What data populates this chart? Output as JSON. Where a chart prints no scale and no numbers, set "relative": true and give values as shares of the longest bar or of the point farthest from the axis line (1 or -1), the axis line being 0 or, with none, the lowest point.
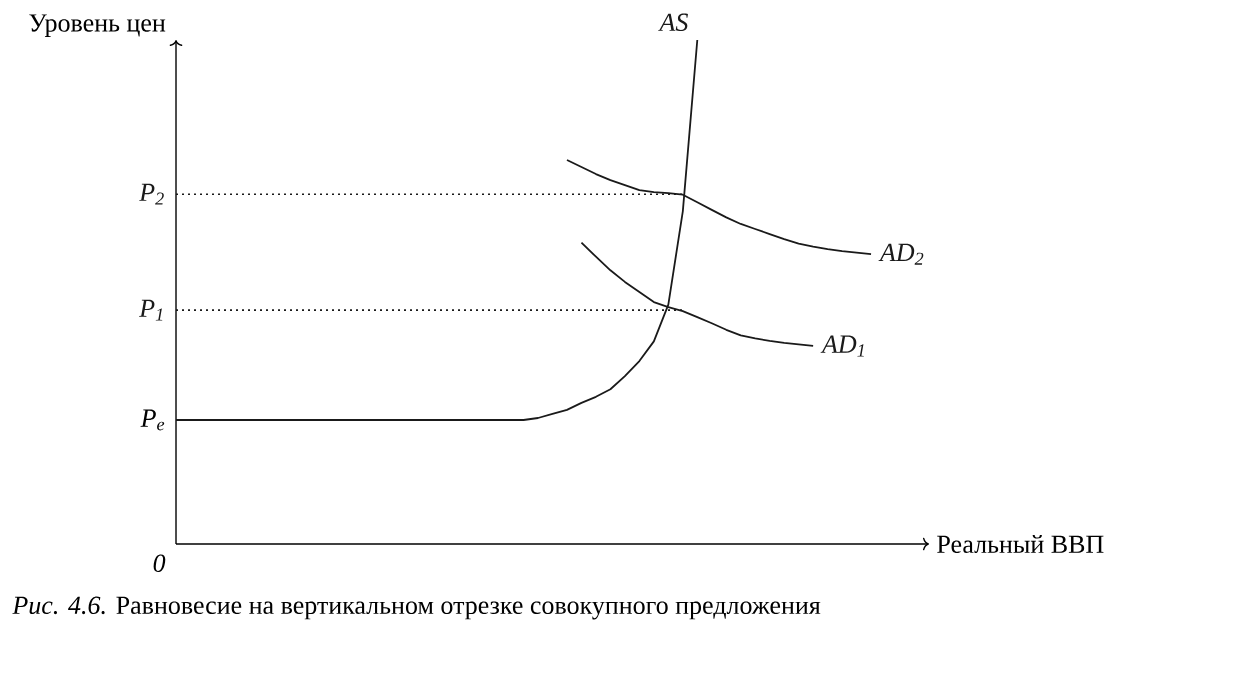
{
  "chart_data": {
    "type": "line",
    "relative": true,
    "marker": "none",
    "line_style": "solid",
    "color": "#1a1a1a",
    "xlabel": "Реальный ВВП",
    "ylabel": "Уровень цен",
    "categories": [
      null,
      null,
      null,
      null,
      null,
      null,
      null,
      null,
      null,
      null,
      null,
      null,
      null,
      null,
      null,
      null,
      null,
      null,
      null,
      null,
      null,
      null,
      null,
      null,
      null,
      null,
      null,
      null,
      null,
      null,
      null,
      null,
      null,
      null,
      null,
      null,
      null,
      null,
      null,
      null,
      null,
      null,
      null,
      null,
      null,
      null,
      null,
      null,
      null,
      null,
      null
    ],
    "series": [
      {
        "name": "AS",
        "values": [
          0.246,
          0.246,
          0.246,
          0.246,
          0.246,
          0.246,
          0.246,
          0.246,
          0.246,
          0.246,
          0.246,
          0.246,
          0.246,
          0.246,
          0.246,
          0.246,
          0.246,
          0.246,
          0.246,
          0.246,
          0.246,
          0.246,
          0.246,
          0.246,
          0.246,
          0.25,
          0.258,
          0.266,
          0.28,
          0.292,
          0.307,
          0.333,
          0.363,
          0.402,
          0.475,
          0.66,
          1.0,
          null,
          null,
          null,
          null,
          null,
          null,
          null,
          null,
          null,
          null,
          null,
          null,
          null,
          null
        ]
      },
      {
        "name": "AD$_{2}$",
        "values": [
          null,
          null,
          null,
          null,
          null,
          null,
          null,
          null,
          null,
          null,
          null,
          null,
          null,
          null,
          null,
          null,
          null,
          null,
          null,
          null,
          null,
          null,
          null,
          null,
          null,
          null,
          null,
          0.762,
          0.748,
          0.734,
          0.722,
          0.712,
          0.702,
          0.698,
          0.696,
          0.693,
          0.678,
          0.663,
          0.648,
          0.635,
          0.625,
          0.615,
          0.605,
          0.596,
          0.59,
          0.585,
          0.581,
          0.578,
          0.575,
          null,
          null
        ]
      },
      {
        "name": "AD$_{1}$",
        "values": [
          null,
          null,
          null,
          null,
          null,
          null,
          null,
          null,
          null,
          null,
          null,
          null,
          null,
          null,
          null,
          null,
          null,
          null,
          null,
          null,
          null,
          null,
          null,
          null,
          null,
          null,
          null,
          null,
          0.598,
          0.57,
          0.543,
          0.52,
          0.5,
          0.48,
          0.47,
          0.462,
          0.45,
          0.438,
          0.425,
          0.414,
          0.408,
          0.403,
          0.399,
          0.396,
          0.393,
          null,
          null,
          null,
          null,
          null,
          null
        ]
      },
      {
        "name": "P$_{2}$",
        "line_style": "dotted",
        "values": [
          0.694,
          0.694,
          0.694,
          0.694,
          0.694,
          0.694,
          0.694,
          0.694,
          0.694,
          0.694,
          0.694,
          0.694,
          0.694,
          0.694,
          0.694,
          0.694,
          0.694,
          0.694,
          0.694,
          0.694,
          0.694,
          0.694,
          0.694,
          0.694,
          0.694,
          0.694,
          0.694,
          0.694,
          0.694,
          0.694,
          0.694,
          0.694,
          0.694,
          0.694,
          0.694,
          0.694,
          null,
          null,
          null,
          null,
          null,
          null,
          null,
          null,
          null,
          null,
          null,
          null,
          null,
          null,
          null
        ]
      },
      {
        "name": "P$_{1}$",
        "line_style": "dotted",
        "values": [
          0.464,
          0.464,
          0.464,
          0.464,
          0.464,
          0.464,
          0.464,
          0.464,
          0.464,
          0.464,
          0.464,
          0.464,
          0.464,
          0.464,
          0.464,
          0.464,
          0.464,
          0.464,
          0.464,
          0.464,
          0.464,
          0.464,
          0.464,
          0.464,
          0.464,
          0.464,
          0.464,
          0.464,
          0.464,
          0.464,
          0.464,
          0.464,
          0.464,
          0.464,
          0.464,
          0.464,
          null,
          null,
          null,
          null,
          null,
          null,
          null,
          null,
          null,
          null,
          null,
          null,
          null,
          null,
          null
        ]
      }
    ],
    "annotations": [
      "P$_{e}$",
      "0",
      "*Рис. 4.6.* Равновесие на вертикальном отрезке совокупного предложения"
    ]
  }
}
